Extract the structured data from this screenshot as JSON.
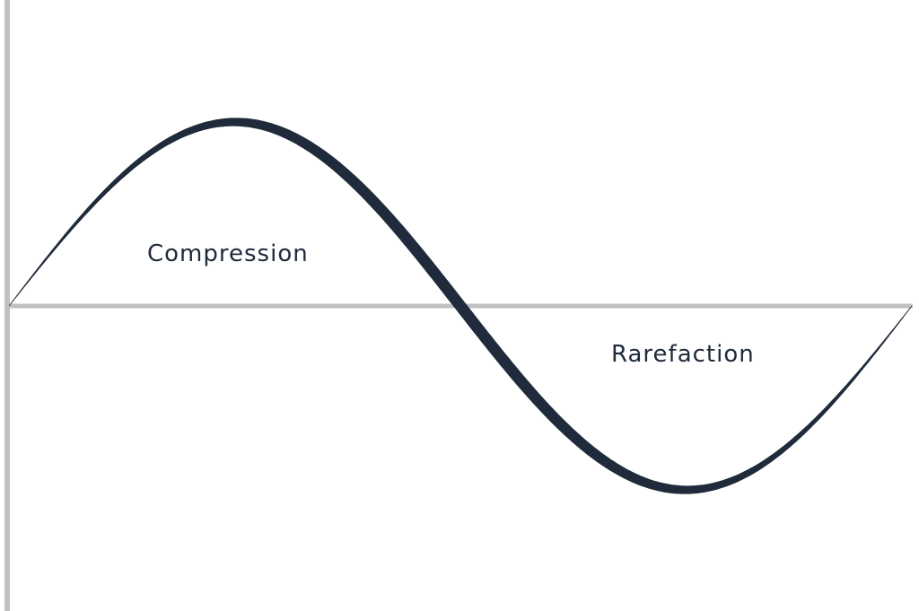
{
  "diagram": {
    "labels": {
      "compression": "Compression",
      "rarefaction": "Rarefaction"
    },
    "wave": {
      "type": "sine",
      "cycles": 1
    },
    "colors": {
      "wave": "#1f2a3a",
      "axis": "#c0c0c0",
      "text": "#1f2a3a"
    }
  }
}
